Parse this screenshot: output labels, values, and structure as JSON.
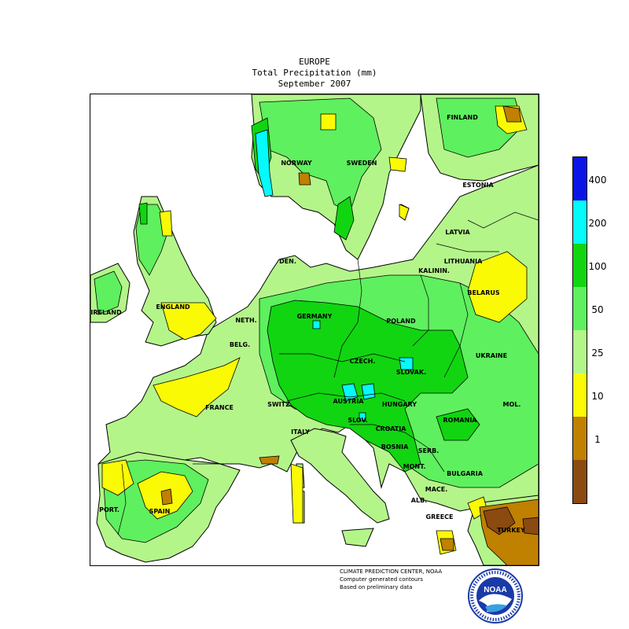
{
  "header": {
    "title": "EUROPE",
    "subtitle": "Total Precipitation (mm)",
    "period": "September 2007"
  },
  "map": {
    "land_color_default": "#b4f58a",
    "sea_color": "#ffffff",
    "countries": [
      {
        "id": "finland",
        "label": "FINLAND"
      },
      {
        "id": "norway",
        "label": "NORWAY"
      },
      {
        "id": "sweden",
        "label": "SWEDEN"
      },
      {
        "id": "estonia",
        "label": "ESTONIA"
      },
      {
        "id": "latvia",
        "label": "LATVIA"
      },
      {
        "id": "lithuania",
        "label": "LITHUANIA"
      },
      {
        "id": "kalinin",
        "label": "KALININ."
      },
      {
        "id": "belarus",
        "label": "BELARUS"
      },
      {
        "id": "denmark",
        "label": "DEN."
      },
      {
        "id": "ireland",
        "label": "IRELAND"
      },
      {
        "id": "england",
        "label": "ENGLAND"
      },
      {
        "id": "netherlands",
        "label": "NETH."
      },
      {
        "id": "belgium",
        "label": "BELG."
      },
      {
        "id": "germany",
        "label": "GERMANY"
      },
      {
        "id": "poland",
        "label": "POLAND"
      },
      {
        "id": "ukraine",
        "label": "UKRAINE"
      },
      {
        "id": "czech",
        "label": "CZECH."
      },
      {
        "id": "slovakia",
        "label": "SLOVAK."
      },
      {
        "id": "france",
        "label": "FRANCE"
      },
      {
        "id": "switzerland",
        "label": "SWITZ."
      },
      {
        "id": "austria",
        "label": "AUSTRIA"
      },
      {
        "id": "hungary",
        "label": "HUNGARY"
      },
      {
        "id": "moldova",
        "label": "MOL."
      },
      {
        "id": "romania",
        "label": "ROMANIA"
      },
      {
        "id": "italy",
        "label": "ITALY"
      },
      {
        "id": "slovenia",
        "label": "SLOV."
      },
      {
        "id": "croatia",
        "label": "CROATIA"
      },
      {
        "id": "bosnia",
        "label": "BOSNIA"
      },
      {
        "id": "serbia",
        "label": "SERB."
      },
      {
        "id": "montenegro",
        "label": "MONT."
      },
      {
        "id": "bulgaria",
        "label": "BULGARIA"
      },
      {
        "id": "macedonia",
        "label": "MACE."
      },
      {
        "id": "albania",
        "label": "ALB."
      },
      {
        "id": "greece",
        "label": "GREECE"
      },
      {
        "id": "turkey",
        "label": "TURKEY"
      },
      {
        "id": "portugal",
        "label": "PORT."
      },
      {
        "id": "spain",
        "label": "SPAIN"
      }
    ]
  },
  "legend": {
    "bins": [
      {
        "range": ">400",
        "color": "#0a14e6"
      },
      {
        "range": "200-400",
        "color": "#05fafa"
      },
      {
        "range": "100-200",
        "color": "#11d511"
      },
      {
        "range": "50-100",
        "color": "#5ef05e"
      },
      {
        "range": "25-50",
        "color": "#b4f58a"
      },
      {
        "range": "10-25",
        "color": "#fafa05"
      },
      {
        "range": "1-10",
        "color": "#c08000"
      },
      {
        "range": "<1",
        "color": "#8a4a10"
      }
    ],
    "tick_labels": [
      "400",
      "200",
      "100",
      "50",
      "25",
      "10",
      "1"
    ]
  },
  "credits": {
    "line1": "CLIMATE PREDICTION CENTER, NOAA",
    "line2": "Computer generated contours",
    "line3": "Based on preliminary data"
  },
  "logo": {
    "text": "NOAA",
    "ring_text": "NATIONAL OCEANIC AND ATMOSPHERIC ADMINISTRATION · U.S. DEPARTMENT OF COMMERCE",
    "colors": {
      "blue": "#1a3aa8",
      "light": "#3aa0e0"
    }
  }
}
